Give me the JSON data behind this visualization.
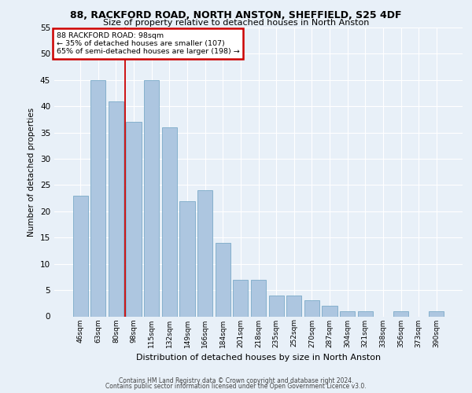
{
  "title_line1": "88, RACKFORD ROAD, NORTH ANSTON, SHEFFIELD, S25 4DF",
  "title_line2": "Size of property relative to detached houses in North Anston",
  "xlabel": "Distribution of detached houses by size in North Anston",
  "ylabel": "Number of detached properties",
  "categories": [
    "46sqm",
    "63sqm",
    "80sqm",
    "98sqm",
    "115sqm",
    "132sqm",
    "149sqm",
    "166sqm",
    "184sqm",
    "201sqm",
    "218sqm",
    "235sqm",
    "252sqm",
    "270sqm",
    "287sqm",
    "304sqm",
    "321sqm",
    "338sqm",
    "356sqm",
    "373sqm",
    "390sqm"
  ],
  "values": [
    23,
    45,
    41,
    37,
    45,
    36,
    22,
    24,
    14,
    7,
    7,
    4,
    4,
    3,
    2,
    1,
    1,
    0,
    1,
    0,
    1
  ],
  "bar_color": "#adc6e0",
  "bar_edge_color": "#7aaac8",
  "annotation_text": "88 RACKFORD ROAD: 98sqm\n← 35% of detached houses are smaller (107)\n65% of semi-detached houses are larger (198) →",
  "annotation_box_color": "#ffffff",
  "annotation_box_edge_color": "#cc0000",
  "property_line_index": 3,
  "ylim": [
    0,
    55
  ],
  "yticks": [
    0,
    5,
    10,
    15,
    20,
    25,
    30,
    35,
    40,
    45,
    50,
    55
  ],
  "bg_color": "#e8f0f8",
  "grid_color": "#ffffff",
  "footer_line1": "Contains HM Land Registry data © Crown copyright and database right 2024.",
  "footer_line2": "Contains public sector information licensed under the Open Government Licence v3.0."
}
